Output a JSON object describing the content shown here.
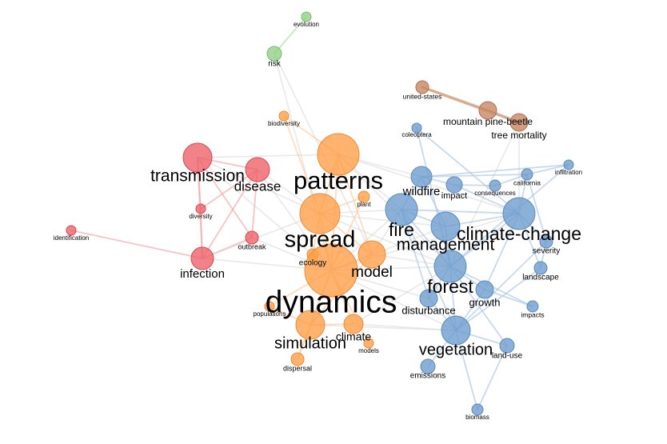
{
  "colors": {
    "c1": "#f08080",
    "c2": "#ffa24f",
    "c3": "#6e9fd0",
    "c4": "#90d090",
    "c5": "#c98a66"
  },
  "clusters": {
    "1": {
      "fill": "#ec5f66",
      "stroke": "#d9474f",
      "edge": "#f2a3a6"
    },
    "2": {
      "fill": "#ff9d45",
      "stroke": "#ef8a2f",
      "edge": "#ffc998"
    },
    "3": {
      "fill": "#6b9bcd",
      "stroke": "#5a89bc",
      "edge": "#a9c6e3"
    },
    "4": {
      "fill": "#8fcf85",
      "stroke": "#76bd6c",
      "edge": "#a6dc9f"
    },
    "5": {
      "fill": "#c6845f",
      "stroke": "#b3714d",
      "edge": "#d8aa8e"
    },
    "gray": "#d6d6d6"
  },
  "nodes": [
    {
      "id": "evolution",
      "label": "evolution",
      "cluster": 4,
      "weight": 1
    },
    {
      "id": "risk",
      "label": "risk",
      "cluster": 4,
      "weight": 2
    },
    {
      "id": "biodiversity",
      "label": "biodiversity",
      "cluster": 2,
      "weight": 1
    },
    {
      "id": "united-states",
      "label": "united-states",
      "cluster": 5,
      "weight": 1
    },
    {
      "id": "mountain-pine-beetle",
      "label": "mountain pine-beetle",
      "cluster": 5,
      "weight": 2
    },
    {
      "id": "tree-mortality",
      "label": "tree mortality",
      "cluster": 5,
      "weight": 2
    },
    {
      "id": "coleoptera",
      "label": "coleoptera",
      "cluster": 3,
      "weight": 1
    },
    {
      "id": "transmission",
      "label": "transmission",
      "cluster": 1,
      "weight": 5
    },
    {
      "id": "disease",
      "label": "disease",
      "cluster": 1,
      "weight": 4
    },
    {
      "id": "patterns",
      "label": "patterns",
      "cluster": 2,
      "weight": 7
    },
    {
      "id": "wildfire",
      "label": "wildfire",
      "cluster": 3,
      "weight": 3
    },
    {
      "id": "impact",
      "label": "impact",
      "cluster": 3,
      "weight": 2
    },
    {
      "id": "consequences",
      "label": "consequences",
      "cluster": 3,
      "weight": 1
    },
    {
      "id": "california",
      "label": "california",
      "cluster": 3,
      "weight": 1
    },
    {
      "id": "infiltration",
      "label": "infiltration",
      "cluster": 3,
      "weight": 1
    },
    {
      "id": "diversity",
      "label": "diversity",
      "cluster": 1,
      "weight": 1
    },
    {
      "id": "plant",
      "label": "plant",
      "cluster": 2,
      "weight": 1
    },
    {
      "id": "identification",
      "label": "identification",
      "cluster": 1,
      "weight": 1
    },
    {
      "id": "fire",
      "label": "fire",
      "cluster": 3,
      "weight": 5
    },
    {
      "id": "climate-change",
      "label": "climate-change",
      "cluster": 3,
      "weight": 5
    },
    {
      "id": "spread",
      "label": "spread",
      "cluster": 2,
      "weight": 6
    },
    {
      "id": "management",
      "label": "management",
      "cluster": 3,
      "weight": 5
    },
    {
      "id": "outbreak",
      "label": "outbreak",
      "cluster": 1,
      "weight": 1
    },
    {
      "id": "severity",
      "label": "severity",
      "cluster": 3,
      "weight": 1
    },
    {
      "id": "ecology",
      "label": "ecology",
      "cluster": 2,
      "weight": 1
    },
    {
      "id": "model",
      "label": "model",
      "cluster": 2,
      "weight": 4
    },
    {
      "id": "infection",
      "label": "infection",
      "cluster": 1,
      "weight": 3
    },
    {
      "id": "landscape",
      "label": "landscape",
      "cluster": 3,
      "weight": 1
    },
    {
      "id": "forest",
      "label": "forest",
      "cluster": 3,
      "weight": 5
    },
    {
      "id": "growth",
      "label": "growth",
      "cluster": 3,
      "weight": 2
    },
    {
      "id": "dynamics",
      "label": "dynamics",
      "cluster": 2,
      "weight": 10
    },
    {
      "id": "disturbance",
      "label": "disturbance",
      "cluster": 3,
      "weight": 2
    },
    {
      "id": "populations",
      "label": "populations",
      "cluster": 2,
      "weight": 1
    },
    {
      "id": "impacts",
      "label": "impacts",
      "cluster": 3,
      "weight": 1
    },
    {
      "id": "climate",
      "label": "climate",
      "cluster": 2,
      "weight": 3
    },
    {
      "id": "simulation",
      "label": "simulation",
      "cluster": 2,
      "weight": 4
    },
    {
      "id": "models",
      "label": "models",
      "cluster": 2,
      "weight": 1
    },
    {
      "id": "vegetation",
      "label": "vegetation",
      "cluster": 3,
      "weight": 4
    },
    {
      "id": "land-use",
      "label": "land-use",
      "cluster": 3,
      "weight": 1
    },
    {
      "id": "dispersal",
      "label": "dispersal",
      "cluster": 2,
      "weight": 1
    },
    {
      "id": "emissions",
      "label": "emissions",
      "cluster": 3,
      "weight": 1
    },
    {
      "id": "biomass",
      "label": "biomass",
      "cluster": 3,
      "weight": 1
    }
  ],
  "edges": [
    [
      "evolution",
      "risk",
      4
    ],
    [
      "risk",
      "dynamics",
      0
    ],
    [
      "risk",
      "model",
      0
    ],
    [
      "united-states",
      "mountain-pine-beetle",
      5
    ],
    [
      "mountain-pine-beetle",
      "tree-mortality",
      5
    ],
    [
      "united-states",
      "tree-mortality",
      5
    ],
    [
      "tree-mortality",
      "forest",
      0
    ],
    [
      "tree-mortality",
      "climate-change",
      0
    ],
    [
      "coleoptera",
      "climate-change",
      3
    ],
    [
      "coleoptera",
      "forest",
      3
    ],
    [
      "transmission",
      "disease",
      1
    ],
    [
      "transmission",
      "diversity",
      1
    ],
    [
      "transmission",
      "infection",
      1
    ],
    [
      "transmission",
      "outbreak",
      1
    ],
    [
      "disease",
      "outbreak",
      1
    ],
    [
      "disease",
      "infection",
      1
    ],
    [
      "disease",
      "diversity",
      1
    ],
    [
      "diversity",
      "infection",
      1
    ],
    [
      "identification",
      "infection",
      1
    ],
    [
      "infection",
      "outbreak",
      1
    ],
    [
      "transmission",
      "patterns",
      0
    ],
    [
      "transmission",
      "spread",
      0
    ],
    [
      "transmission",
      "dynamics",
      0
    ],
    [
      "disease",
      "spread",
      0
    ],
    [
      "disease",
      "dynamics",
      0
    ],
    [
      "infection",
      "dynamics",
      0
    ],
    [
      "infection",
      "spread",
      0
    ],
    [
      "outbreak",
      "dynamics",
      0
    ],
    [
      "biodiversity",
      "spread",
      2
    ],
    [
      "biodiversity",
      "patterns",
      2
    ],
    [
      "patterns",
      "spread",
      2
    ],
    [
      "patterns",
      "dynamics",
      2
    ],
    [
      "patterns",
      "model",
      2
    ],
    [
      "patterns",
      "fire",
      0
    ],
    [
      "patterns",
      "forest",
      0
    ],
    [
      "patterns",
      "climate-change",
      0
    ],
    [
      "patterns",
      "wildfire",
      0
    ],
    [
      "spread",
      "dynamics",
      2
    ],
    [
      "spread",
      "model",
      2
    ],
    [
      "spread",
      "ecology",
      2
    ],
    [
      "spread",
      "fire",
      0
    ],
    [
      "spread",
      "management",
      0
    ],
    [
      "spread",
      "forest",
      0
    ],
    [
      "plant",
      "dynamics",
      2
    ],
    [
      "plant",
      "spread",
      2
    ],
    [
      "dynamics",
      "model",
      2
    ],
    [
      "dynamics",
      "simulation",
      2
    ],
    [
      "dynamics",
      "climate",
      2
    ],
    [
      "dynamics",
      "populations",
      2
    ],
    [
      "dynamics",
      "dispersal",
      2
    ],
    [
      "dynamics",
      "models",
      2
    ],
    [
      "dynamics",
      "forest",
      0
    ],
    [
      "dynamics",
      "fire",
      0
    ],
    [
      "dynamics",
      "vegetation",
      0
    ],
    [
      "dynamics",
      "disturbance",
      0
    ],
    [
      "dynamics",
      "climate-change",
      0
    ],
    [
      "dynamics",
      "management",
      0
    ],
    [
      "model",
      "simulation",
      2
    ],
    [
      "model",
      "fire",
      0
    ],
    [
      "model",
      "forest",
      0
    ],
    [
      "simulation",
      "climate",
      2
    ],
    [
      "simulation",
      "vegetation",
      0
    ],
    [
      "climate",
      "vegetation",
      0
    ],
    [
      "climate",
      "forest",
      0
    ],
    [
      "populations",
      "simulation",
      2
    ],
    [
      "dispersal",
      "simulation",
      2
    ],
    [
      "wildfire",
      "fire",
      3
    ],
    [
      "wildfire",
      "impact",
      3
    ],
    [
      "wildfire",
      "management",
      3
    ],
    [
      "wildfire",
      "california",
      3
    ],
    [
      "wildfire",
      "infiltration",
      3
    ],
    [
      "impact",
      "consequences",
      3
    ],
    [
      "impact",
      "climate-change",
      3
    ],
    [
      "consequences",
      "california",
      3
    ],
    [
      "california",
      "infiltration",
      3
    ],
    [
      "california",
      "climate-change",
      3
    ],
    [
      "california",
      "severity",
      3
    ],
    [
      "fire",
      "management",
      3
    ],
    [
      "fire",
      "climate-change",
      3
    ],
    [
      "fire",
      "forest",
      3
    ],
    [
      "fire",
      "vegetation",
      3
    ],
    [
      "fire",
      "disturbance",
      3
    ],
    [
      "management",
      "climate-change",
      3
    ],
    [
      "management",
      "forest",
      3
    ],
    [
      "climate-change",
      "forest",
      3
    ],
    [
      "climate-change",
      "severity",
      3
    ],
    [
      "climate-change",
      "landscape",
      3
    ],
    [
      "climate-change",
      "growth",
      3
    ],
    [
      "forest",
      "growth",
      3
    ],
    [
      "forest",
      "disturbance",
      3
    ],
    [
      "forest",
      "vegetation",
      3
    ],
    [
      "forest",
      "impacts",
      3
    ],
    [
      "forest",
      "land-use",
      3
    ],
    [
      "growth",
      "vegetation",
      3
    ],
    [
      "growth",
      "impacts",
      3
    ],
    [
      "disturbance",
      "vegetation",
      3
    ],
    [
      "vegetation",
      "land-use",
      3
    ],
    [
      "vegetation",
      "emissions",
      3
    ],
    [
      "vegetation",
      "biomass",
      3
    ],
    [
      "land-use",
      "biomass",
      3
    ],
    [
      "severity",
      "landscape",
      3
    ],
    [
      "severity",
      "vegetation",
      3
    ],
    [
      "landscape",
      "vegetation",
      3
    ],
    [
      "infiltration",
      "forest",
      3
    ]
  ]
}
